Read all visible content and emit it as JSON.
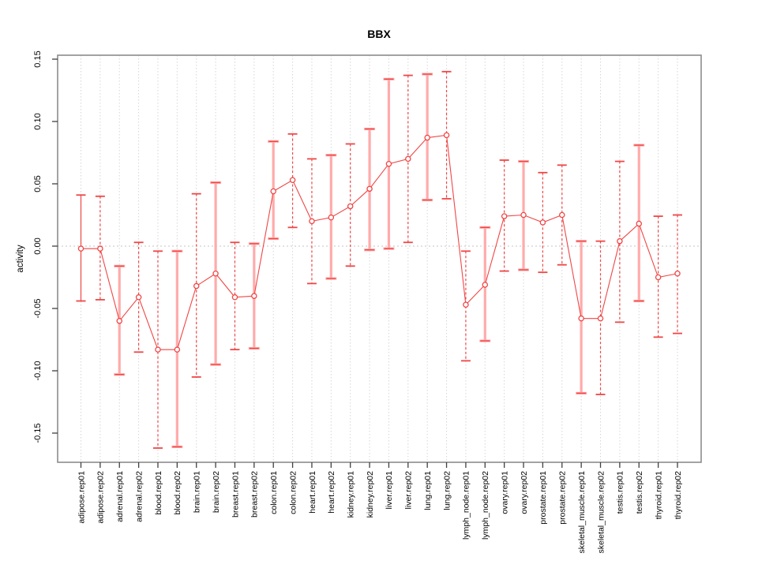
{
  "chart_data": {
    "type": "line",
    "title": "BBX",
    "ylabel": "activity",
    "xlabel": "",
    "ylim": [
      -0.175,
      0.155
    ],
    "grid": true,
    "zero_line": true,
    "legend_position": "none",
    "yticks": [
      {
        "v": 0.15,
        "label": "0.15"
      },
      {
        "v": 0.1,
        "label": "0.10"
      },
      {
        "v": 0.05,
        "label": "0.05"
      },
      {
        "v": 0.0,
        "label": "0.00"
      },
      {
        "v": -0.05,
        "label": "-0.05"
      },
      {
        "v": -0.1,
        "label": "-0.10"
      },
      {
        "v": -0.15,
        "label": "-0.15"
      }
    ],
    "categories": [
      "adipose.rep01",
      "adipose.rep02",
      "adrenal.rep01",
      "adrenal.rep02",
      "blood.rep01",
      "blood.rep02",
      "brain.rep01",
      "brain.rep02",
      "breast.rep01",
      "breast.rep02",
      "colon.rep01",
      "colon.rep02",
      "heart.rep01",
      "heart.rep02",
      "kidney.rep01",
      "kidney.rep02",
      "liver.rep01",
      "liver.rep02",
      "lung.rep01",
      "lung.rep02",
      "lymph_node.rep01",
      "lymph_node.rep02",
      "ovary.rep01",
      "ovary.rep02",
      "prostate.rep01",
      "prostate.rep02",
      "skeletal_muscle.rep01",
      "skeletal_muscle.rep02",
      "testis.rep01",
      "testis.rep02",
      "thyroid.rep01",
      "thyroid.rep02"
    ],
    "series": [
      {
        "name": "activity",
        "values": [
          -0.002,
          -0.002,
          -0.06,
          -0.041,
          -0.083,
          -0.083,
          -0.032,
          -0.022,
          -0.041,
          -0.04,
          0.044,
          0.053,
          0.02,
          0.023,
          0.032,
          0.046,
          0.066,
          0.07,
          0.087,
          0.089,
          -0.047,
          -0.031,
          0.024,
          0.025,
          0.019,
          0.025,
          -0.058,
          -0.058,
          0.004,
          0.018,
          -0.025,
          -0.022
        ],
        "err_high": [
          0.041,
          0.04,
          -0.016,
          0.003,
          -0.004,
          -0.004,
          0.042,
          0.051,
          0.003,
          0.002,
          0.084,
          0.09,
          0.07,
          0.073,
          0.082,
          0.094,
          0.134,
          0.137,
          0.138,
          0.14,
          -0.004,
          0.015,
          0.069,
          0.068,
          0.059,
          0.065,
          0.004,
          0.004,
          0.068,
          0.081,
          0.024,
          0.025
        ],
        "err_low": [
          -0.044,
          -0.043,
          -0.103,
          -0.085,
          -0.162,
          -0.161,
          -0.105,
          -0.095,
          -0.083,
          -0.082,
          0.006,
          0.015,
          -0.03,
          -0.026,
          -0.016,
          -0.003,
          -0.002,
          0.003,
          0.037,
          0.038,
          -0.092,
          -0.076,
          -0.02,
          -0.019,
          -0.021,
          -0.015,
          -0.118,
          -0.119,
          -0.061,
          -0.044,
          -0.073,
          -0.07
        ],
        "bar_styles": [
          "solid",
          "dashed",
          "pink",
          "dashed",
          "dashed",
          "pink",
          "dashed",
          "pink",
          "dashed",
          "pink",
          "pink",
          "dashed",
          "dashed",
          "pink",
          "dashed",
          "pink",
          "pink",
          "dashed",
          "pink",
          "dashed",
          "dashed",
          "pink",
          "dashed",
          "pink",
          "dashed",
          "dashed",
          "pink",
          "dashed",
          "dashed",
          "pink",
          "dashed",
          "dashed"
        ]
      }
    ],
    "colors": {
      "line": "#f04646",
      "pink_bar": "#ffabab",
      "marker_fill": "#ffffff",
      "grid": "#d6d6d6",
      "zero_line": "#c4c4c4",
      "frame": "#8c8c8c",
      "tick": "#404040",
      "text": "#000000"
    }
  }
}
